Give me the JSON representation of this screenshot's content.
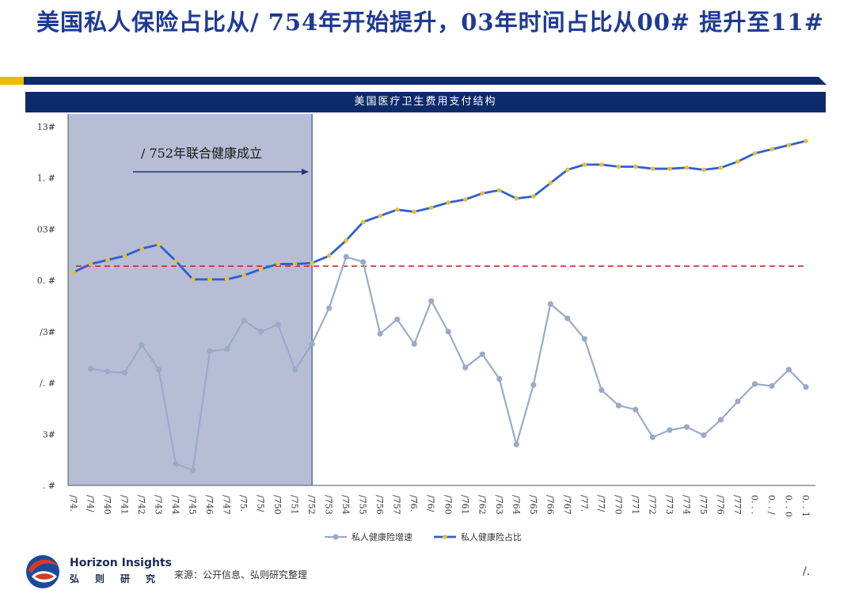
{
  "slide": {
    "title": "美国私人保险占比从/ 754年开始提升，03年时间占比从00# 提升至11#",
    "chart_header": "美国医疗卫生费用支付结构",
    "source": "来源：公开信息、弘则研究整理",
    "page_number": "/.",
    "brand_en": "Horizon Insights",
    "brand_cn": "弘则研究"
  },
  "colors": {
    "navy": "#0d2a6b",
    "gold": "#f2b800",
    "blue_line": "#2e5fd6",
    "gray_line": "#9aaac9",
    "shade": "#9ea7c6",
    "red_dash": "#e0202a",
    "marker": "#e8c032"
  },
  "chart_data": {
    "type": "line",
    "title": "美国医疗卫生费用支付结构",
    "categories": [
      "/74.",
      "/74/",
      "/740",
      "/741",
      "/742",
      "/743",
      "/744",
      "/745",
      "/746",
      "/747",
      "/75.",
      "/75/",
      "/750",
      "/751",
      "/752",
      "/753",
      "/754",
      "/755",
      "/756",
      "/757",
      "/76.",
      "/76/",
      "/760",
      "/761",
      "/762",
      "/763",
      "/764",
      "/765",
      "/766",
      "/767",
      "/77.",
      "/77/",
      "/770",
      "/771",
      "/772",
      "/773",
      "/774",
      "/775",
      "/776",
      "/777",
      "0. . .",
      "0. . /",
      "0. . 0",
      "0. . 1"
    ],
    "y_tick_labels": [
      "13#",
      "1. #",
      "03#",
      "0. #",
      "/3#",
      "/. #",
      "3#",
      ". #"
    ],
    "ylim": [
      0,
      35
    ],
    "series": [
      {
        "name": "私人健康险增速",
        "color": "#9aaac9",
        "values": [
          null,
          11.4,
          11.1,
          11.0,
          13.7,
          11.3,
          2.1,
          1.5,
          13.1,
          13.3,
          16.1,
          15.0,
          15.7,
          11.3,
          13.8,
          17.3,
          22.3,
          21.8,
          14.8,
          16.2,
          13.8,
          18.0,
          15.0,
          11.5,
          12.8,
          10.4,
          4.0,
          9.8,
          17.7,
          16.3,
          14.3,
          9.3,
          7.8,
          7.4,
          4.7,
          5.4,
          5.7,
          4.9,
          6.4,
          8.2,
          9.9,
          9.7,
          11.3,
          9.6
        ]
      },
      {
        "name": "私人健康险占比",
        "color": "#2e5fd6",
        "values": [
          20.8,
          21.6,
          22.0,
          22.4,
          23.1,
          23.5,
          21.9,
          20.1,
          20.1,
          20.1,
          20.5,
          21.1,
          21.6,
          21.6,
          21.7,
          22.4,
          23.9,
          25.7,
          26.3,
          26.9,
          26.7,
          27.1,
          27.6,
          27.9,
          28.5,
          28.8,
          28.0,
          28.2,
          29.5,
          30.8,
          31.3,
          31.3,
          31.1,
          31.1,
          30.9,
          30.9,
          31.0,
          30.8,
          31.0,
          31.6,
          32.4,
          32.8,
          33.2,
          33.6
        ]
      }
    ],
    "reference_line": {
      "value": 21.4,
      "style": "dashed",
      "color": "#e0202a"
    },
    "shaded_region": {
      "from": "/74.",
      "to": "/752"
    },
    "annotation": "/ 752年联合健康成立",
    "legend": [
      "私人健康险增速",
      "私人健康险占比"
    ],
    "legend_position": "bottom-center",
    "grid": false
  }
}
